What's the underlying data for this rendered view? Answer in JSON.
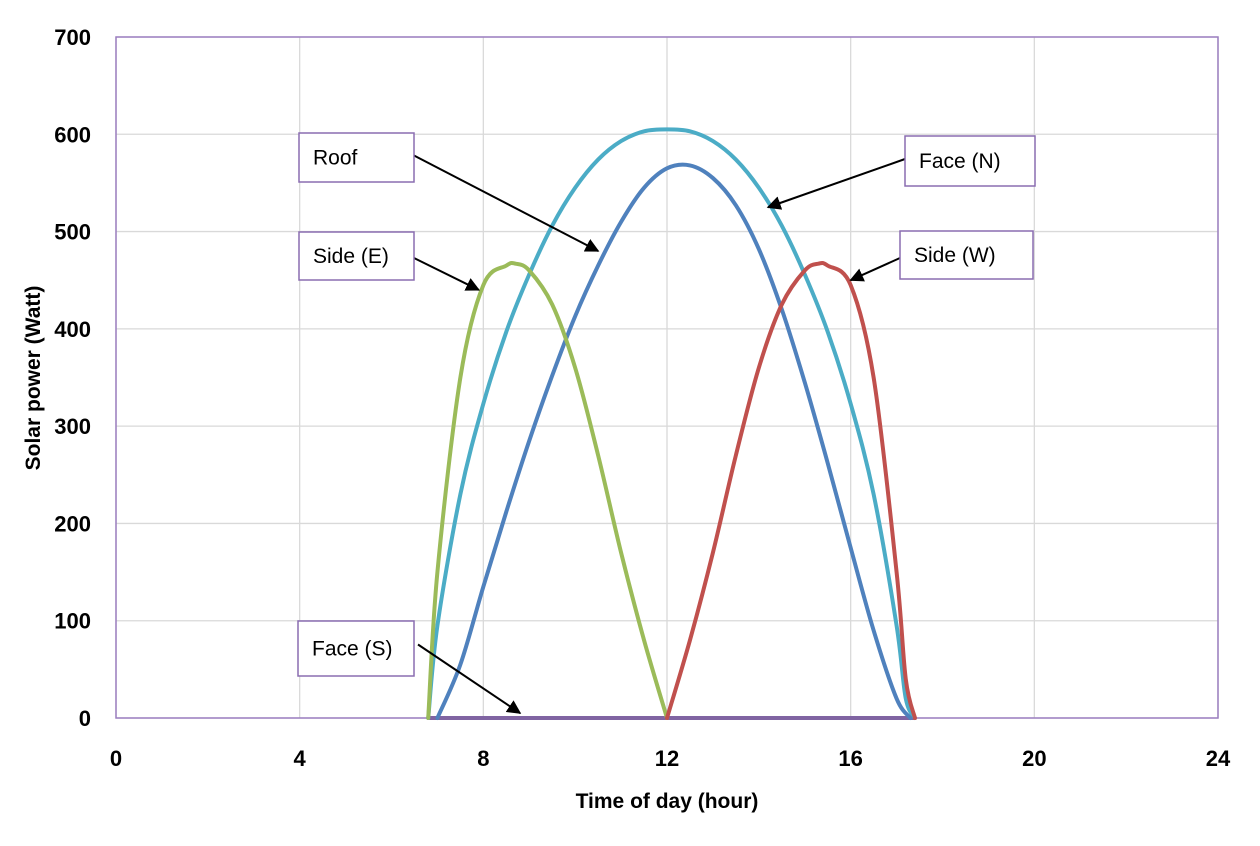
{
  "chart_data": {
    "type": "line",
    "title": "",
    "xlabel": "Time of day (hour)",
    "ylabel": "Solar power (Watt)",
    "xlim": [
      0,
      24
    ],
    "ylim": [
      0,
      700
    ],
    "xticks": [
      0,
      4,
      8,
      12,
      16,
      20,
      24
    ],
    "yticks": [
      0,
      100,
      200,
      300,
      400,
      500,
      600,
      700
    ],
    "grid": true,
    "legend": "none",
    "series": [
      {
        "name": "Face (N)",
        "color": "#4bacc6",
        "x": [
          6.8,
          7.0,
          7.5,
          8,
          8.5,
          9,
          9.5,
          10,
          10.5,
          11,
          11.5,
          12,
          12.5,
          13,
          13.5,
          14,
          14.5,
          15,
          15.5,
          16,
          16.5,
          17,
          17.2,
          17.4
        ],
        "y": [
          0,
          95,
          230,
          323,
          397,
          456,
          506,
          545,
          574,
          593,
          603,
          605,
          603,
          593,
          574,
          545,
          506,
          456,
          397,
          323,
          230,
          95,
          20,
          0
        ]
      },
      {
        "name": "Roof",
        "color": "#4f81bd",
        "x": [
          7.0,
          7.5,
          8,
          8.5,
          9,
          9.5,
          10,
          10.5,
          11,
          11.5,
          12,
          12.5,
          13,
          13.5,
          14,
          14.5,
          15,
          15.5,
          16,
          16.5,
          17,
          17.3
        ],
        "y": [
          0,
          55,
          135,
          212,
          285,
          352,
          413,
          465,
          510,
          545,
          565,
          568,
          555,
          527,
          482,
          420,
          345,
          262,
          175,
          90,
          20,
          0
        ]
      },
      {
        "name": "Side (E)",
        "color": "#9bbb59",
        "x": [
          6.8,
          7.0,
          7.5,
          8,
          8.5,
          8.7,
          9,
          9.5,
          10,
          10.5,
          11,
          11.5,
          12
        ],
        "y": [
          0,
          150,
          350,
          445,
          465,
          467,
          460,
          425,
          360,
          270,
          170,
          80,
          0
        ]
      },
      {
        "name": "Side (W)",
        "color": "#c0504d",
        "x": [
          12,
          12.5,
          13,
          13.5,
          14,
          14.5,
          15,
          15.3,
          15.5,
          16,
          16.5,
          17,
          17.2,
          17.4
        ],
        "y": [
          0,
          80,
          170,
          270,
          360,
          425,
          460,
          467,
          465,
          445,
          350,
          150,
          40,
          0
        ]
      },
      {
        "name": "Face (S)",
        "color": "#8064a2",
        "x": [
          6.8,
          17.4
        ],
        "y": [
          0,
          0
        ]
      }
    ],
    "annotations": [
      {
        "text": "Roof",
        "target_x": 10.5,
        "target_y": 480
      },
      {
        "text": "Face (N)",
        "target_x": 14.2,
        "target_y": 525
      },
      {
        "text": "Side (E)",
        "target_x": 7.9,
        "target_y": 440
      },
      {
        "text": "Side (W)",
        "target_x": 16.0,
        "target_y": 450
      },
      {
        "text": "Face (S)",
        "target_x": 8.8,
        "target_y": 5
      }
    ]
  }
}
